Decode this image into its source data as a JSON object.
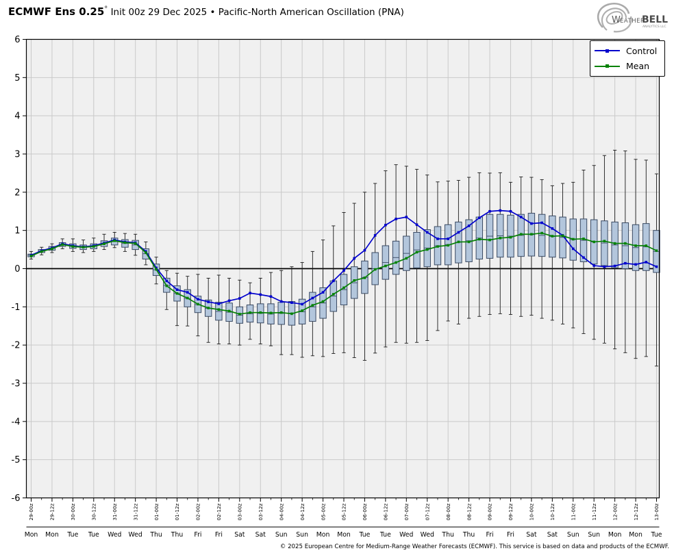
{
  "header": {
    "title_bold": "ECMWF Ens 0.25",
    "title_degree": "°",
    "title_rest": " Init 00z 29 Dec 2025 • Pacific-North American Oscillation (PNA)",
    "logo": {
      "icon": "hurricane-spiral-icon",
      "brand_weather": "Weather",
      "brand_bell": "BELL",
      "brand_sub": "Analytics LLC"
    }
  },
  "legend": {
    "items": [
      {
        "label": "Control",
        "color": "#0000cc",
        "marker": "square"
      },
      {
        "label": "Mean",
        "color": "#068206",
        "marker": "square"
      }
    ]
  },
  "footer": {
    "copyright": "© 2025 European Centre for Medium-Range Weather Forecasts (ECMWF). This service is based on data and products of the ECMWF."
  },
  "colors": {
    "control": "#0000cc",
    "mean": "#068206",
    "box_fill": "#b3c6dc",
    "box_stroke": "#3a4a63",
    "whisker": "#1a1a1a",
    "plot_bg": "#f0f0f0",
    "grid": "#c9c9c9",
    "zero_line": "#000000",
    "spine": "#000000"
  },
  "chart_data": {
    "type": "box-whisker-with-lines",
    "title": "ECMWF Ens 0.25° Init 00z 29 Dec 2025 • Pacific-North American Oscillation (PNA)",
    "ylabel": "",
    "xlabel": "",
    "ylim": [
      -6,
      6
    ],
    "yticks": [
      6,
      5,
      4,
      3,
      2,
      1,
      0,
      -1,
      -2,
      -3,
      -4,
      -5,
      -6
    ],
    "grid": true,
    "zero_line": true,
    "legend_position": "upper right",
    "x_step_hours": 6,
    "x": [
      "29-00z",
      "29-06z",
      "29-12z",
      "29-18z",
      "30-00z",
      "30-06z",
      "30-12z",
      "30-18z",
      "31-00z",
      "31-06z",
      "31-12z",
      "31-18z",
      "01-00z",
      "01-06z",
      "01-12z",
      "01-18z",
      "02-00z",
      "02-06z",
      "02-12z",
      "02-18z",
      "03-00z",
      "03-06z",
      "03-12z",
      "03-18z",
      "04-00z",
      "04-06z",
      "04-12z",
      "04-18z",
      "05-00z",
      "05-06z",
      "05-12z",
      "05-18z",
      "06-00z",
      "06-06z",
      "06-12z",
      "06-18z",
      "07-00z",
      "07-06z",
      "07-12z",
      "07-18z",
      "08-00z",
      "08-06z",
      "08-12z",
      "08-18z",
      "09-00z",
      "09-06z",
      "09-12z",
      "09-18z",
      "10-00z",
      "10-06z",
      "10-12z",
      "10-18z",
      "11-00z",
      "11-06z",
      "11-12z",
      "11-18z",
      "12-00z",
      "12-06z",
      "12-12z",
      "12-18z",
      "13-00z"
    ],
    "x_tick_labels_12h": [
      "29-00z",
      "29-12z",
      "30-00z",
      "30-12z",
      "31-00z",
      "31-12z",
      "01-00z",
      "01-12z",
      "02-00z",
      "02-12z",
      "03-00z",
      "03-12z",
      "04-00z",
      "04-12z",
      "05-00z",
      "05-12z",
      "06-00z",
      "06-12z",
      "07-00z",
      "07-12z",
      "08-00z",
      "08-12z",
      "09-00z",
      "09-12z",
      "10-00z",
      "10-12z",
      "11-00z",
      "11-12z",
      "12-00z",
      "12-12z",
      "13-00z"
    ],
    "x_day_labels": [
      "Mon",
      "Mon",
      "Tue",
      "Tue",
      "Wed",
      "Wed",
      "Thu",
      "Thu",
      "Fri",
      "Fri",
      "Sat",
      "Sat",
      "Sun",
      "Sun",
      "Mon",
      "Mon",
      "Tue",
      "Tue",
      "Wed",
      "Wed",
      "Thu",
      "Thu",
      "Fri",
      "Fri",
      "Sat",
      "Sat",
      "Sun",
      "Sun",
      "Mon",
      "Mon",
      "Tue"
    ],
    "series": [
      {
        "name": "Control",
        "values": [
          0.35,
          0.47,
          0.54,
          0.65,
          0.6,
          0.57,
          0.6,
          0.67,
          0.75,
          0.7,
          0.68,
          0.45,
          0.02,
          -0.32,
          -0.55,
          -0.62,
          -0.8,
          -0.87,
          -0.92,
          -0.84,
          -0.78,
          -0.64,
          -0.68,
          -0.73,
          -0.86,
          -0.89,
          -0.93,
          -0.77,
          -0.62,
          -0.32,
          -0.05,
          0.27,
          0.48,
          0.87,
          1.14,
          1.3,
          1.35,
          1.15,
          0.95,
          0.78,
          0.78,
          0.95,
          1.12,
          1.33,
          1.5,
          1.52,
          1.5,
          1.35,
          1.18,
          1.2,
          1.05,
          0.87,
          0.52,
          0.29,
          0.08,
          0.05,
          0.07,
          0.14,
          0.11,
          0.17,
          0.05
        ]
      },
      {
        "name": "Mean",
        "values": [
          0.33,
          0.45,
          0.52,
          0.63,
          0.58,
          0.56,
          0.58,
          0.65,
          0.73,
          0.68,
          0.66,
          0.42,
          -0.02,
          -0.45,
          -0.65,
          -0.77,
          -0.93,
          -1.03,
          -1.07,
          -1.11,
          -1.19,
          -1.15,
          -1.15,
          -1.16,
          -1.15,
          -1.18,
          -1.1,
          -0.96,
          -0.86,
          -0.67,
          -0.5,
          -0.31,
          -0.24,
          -0.02,
          0.07,
          0.16,
          0.27,
          0.43,
          0.5,
          0.58,
          0.61,
          0.7,
          0.7,
          0.77,
          0.75,
          0.8,
          0.82,
          0.9,
          0.9,
          0.93,
          0.85,
          0.86,
          0.77,
          0.78,
          0.7,
          0.72,
          0.66,
          0.66,
          0.6,
          0.6,
          0.47
        ]
      }
    ],
    "ensemble_boxes": {
      "q3": [
        0.38,
        0.5,
        0.58,
        0.68,
        0.65,
        0.62,
        0.65,
        0.73,
        0.8,
        0.76,
        0.74,
        0.52,
        0.12,
        -0.25,
        -0.45,
        -0.55,
        -0.72,
        -0.82,
        -0.88,
        -0.9,
        -1.0,
        -0.95,
        -0.92,
        -0.92,
        -0.88,
        -0.86,
        -0.8,
        -0.62,
        -0.5,
        -0.32,
        -0.15,
        0.05,
        0.2,
        0.42,
        0.6,
        0.72,
        0.85,
        0.95,
        1.02,
        1.1,
        1.15,
        1.22,
        1.28,
        1.35,
        1.42,
        1.42,
        1.4,
        1.42,
        1.45,
        1.42,
        1.38,
        1.35,
        1.3,
        1.3,
        1.28,
        1.25,
        1.22,
        1.2,
        1.15,
        1.18,
        1.0
      ],
      "q1": [
        0.31,
        0.42,
        0.48,
        0.58,
        0.53,
        0.5,
        0.52,
        0.58,
        0.62,
        0.56,
        0.5,
        0.25,
        -0.18,
        -0.62,
        -0.85,
        -1.0,
        -1.15,
        -1.25,
        -1.35,
        -1.38,
        -1.43,
        -1.4,
        -1.42,
        -1.45,
        -1.46,
        -1.48,
        -1.45,
        -1.38,
        -1.3,
        -1.12,
        -0.95,
        -0.78,
        -0.65,
        -0.42,
        -0.28,
        -0.15,
        -0.05,
        0.02,
        0.05,
        0.1,
        0.1,
        0.15,
        0.18,
        0.25,
        0.27,
        0.3,
        0.3,
        0.32,
        0.33,
        0.32,
        0.3,
        0.28,
        0.22,
        0.18,
        0.12,
        0.08,
        0.02,
        0.0,
        -0.05,
        -0.05,
        -0.1
      ],
      "median": [
        0.35,
        0.46,
        0.53,
        0.63,
        0.59,
        0.56,
        0.59,
        0.66,
        0.71,
        0.66,
        0.62,
        0.39,
        -0.03,
        -0.44,
        -0.65,
        -0.78,
        -0.94,
        -1.04,
        -1.12,
        -1.14,
        -1.22,
        -1.18,
        -1.17,
        -1.19,
        -1.17,
        -1.17,
        -1.13,
        -1.0,
        -0.9,
        -0.72,
        -0.55,
        -0.37,
        -0.23,
        0.0,
        0.16,
        0.29,
        0.4,
        0.49,
        0.54,
        0.6,
        0.63,
        0.69,
        0.73,
        0.8,
        0.85,
        0.86,
        0.85,
        0.87,
        0.89,
        0.87,
        0.84,
        0.82,
        0.76,
        0.74,
        0.7,
        0.67,
        0.62,
        0.6,
        0.55,
        0.57,
        0.45
      ],
      "whisker_high": [
        0.45,
        0.56,
        0.65,
        0.78,
        0.78,
        0.75,
        0.8,
        0.9,
        0.95,
        0.92,
        0.9,
        0.7,
        0.3,
        -0.05,
        -0.12,
        -0.2,
        -0.15,
        -0.25,
        -0.17,
        -0.25,
        -0.3,
        -0.37,
        -0.25,
        -0.1,
        -0.05,
        0.05,
        0.16,
        0.45,
        0.75,
        1.12,
        1.47,
        1.71,
        2.0,
        2.23,
        2.56,
        2.72,
        2.68,
        2.6,
        2.45,
        2.27,
        2.29,
        2.31,
        2.39,
        2.51,
        2.5,
        2.51,
        2.26,
        2.4,
        2.39,
        2.33,
        2.17,
        2.23,
        2.26,
        2.58,
        2.7,
        2.96,
        3.1,
        3.08,
        2.86,
        2.84,
        2.48
      ],
      "whisker_low": [
        0.25,
        0.36,
        0.42,
        0.52,
        0.45,
        0.42,
        0.45,
        0.5,
        0.55,
        0.45,
        0.35,
        0.1,
        -0.4,
        -1.07,
        -1.49,
        -1.5,
        -1.76,
        -1.93,
        -1.97,
        -1.97,
        -2.0,
        -1.85,
        -1.97,
        -2.02,
        -2.25,
        -2.25,
        -2.32,
        -2.28,
        -2.3,
        -2.22,
        -2.2,
        -2.33,
        -2.4,
        -2.21,
        -2.05,
        -1.93,
        -1.95,
        -1.93,
        -1.88,
        -1.62,
        -1.37,
        -1.45,
        -1.3,
        -1.25,
        -1.2,
        -1.18,
        -1.2,
        -1.25,
        -1.22,
        -1.3,
        -1.35,
        -1.45,
        -1.55,
        -1.7,
        -1.85,
        -1.95,
        -2.1,
        -2.2,
        -2.35,
        -2.3,
        -2.55
      ]
    }
  }
}
